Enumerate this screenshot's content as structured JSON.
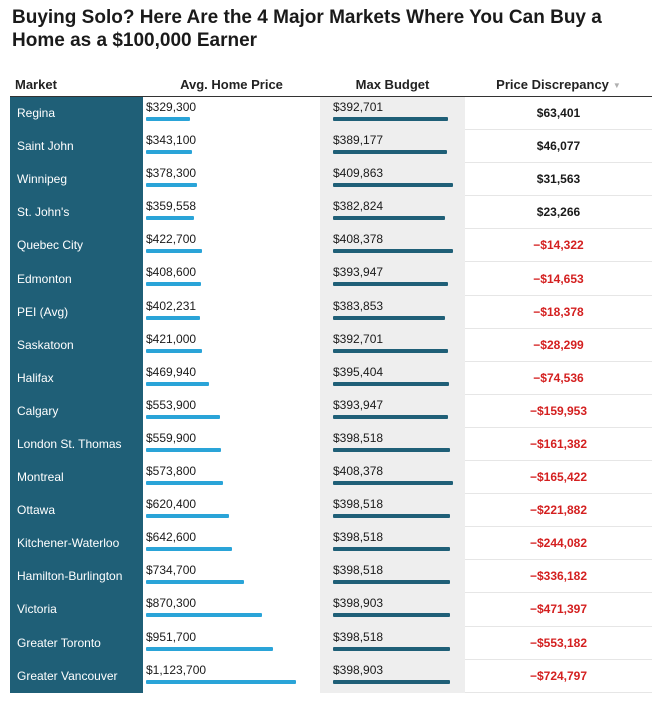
{
  "title": "Buying Solo? Here Are the 4 Major Markets Where You Can Buy a Home as a $100,000 Earner",
  "headers": {
    "market": "Market",
    "avg": "Avg. Home Price",
    "max": "Max Budget",
    "disc": "Price Discrepancy",
    "sort_icon": "▼"
  },
  "colors": {
    "market_bg": "#1f5f77",
    "avg_bar": "#2aa4d8",
    "max_bar": "#1f5f77",
    "negative": "#d42020"
  },
  "chart_data": {
    "type": "table",
    "title": "Buying Solo? Here Are the 4 Major Markets Where You Can Buy a Home as a $100,000 Earner",
    "columns": [
      "Market",
      "Avg. Home Price",
      "Max Budget",
      "Price Discrepancy"
    ],
    "rows": [
      {
        "market": "Regina",
        "avg_price": "$329,300",
        "avg_value": 329300,
        "max_budget": "$392,701",
        "max_value": 392701,
        "discrepancy": "$63,401",
        "disc_value": 63401
      },
      {
        "market": "Saint John",
        "avg_price": "$343,100",
        "avg_value": 343100,
        "max_budget": "$389,177",
        "max_value": 389177,
        "discrepancy": "$46,077",
        "disc_value": 46077
      },
      {
        "market": "Winnipeg",
        "avg_price": "$378,300",
        "avg_value": 378300,
        "max_budget": "$409,863",
        "max_value": 409863,
        "discrepancy": "$31,563",
        "disc_value": 31563
      },
      {
        "market": "St. John's",
        "avg_price": "$359,558",
        "avg_value": 359558,
        "max_budget": "$382,824",
        "max_value": 382824,
        "discrepancy": "$23,266",
        "disc_value": 23266
      },
      {
        "market": "Quebec City",
        "avg_price": "$422,700",
        "avg_value": 422700,
        "max_budget": "$408,378",
        "max_value": 408378,
        "discrepancy": "−$14,322",
        "disc_value": -14322
      },
      {
        "market": "Edmonton",
        "avg_price": "$408,600",
        "avg_value": 408600,
        "max_budget": "$393,947",
        "max_value": 393947,
        "discrepancy": "−$14,653",
        "disc_value": -14653
      },
      {
        "market": "PEI (Avg)",
        "avg_price": "$402,231",
        "avg_value": 402231,
        "max_budget": "$383,853",
        "max_value": 383853,
        "discrepancy": "−$18,378",
        "disc_value": -18378
      },
      {
        "market": "Saskatoon",
        "avg_price": "$421,000",
        "avg_value": 421000,
        "max_budget": "$392,701",
        "max_value": 392701,
        "discrepancy": "−$28,299",
        "disc_value": -28299
      },
      {
        "market": "Halifax",
        "avg_price": "$469,940",
        "avg_value": 469940,
        "max_budget": "$395,404",
        "max_value": 395404,
        "discrepancy": "−$74,536",
        "disc_value": -74536
      },
      {
        "market": "Calgary",
        "avg_price": "$553,900",
        "avg_value": 553900,
        "max_budget": "$393,947",
        "max_value": 393947,
        "discrepancy": "−$159,953",
        "disc_value": -159953
      },
      {
        "market": "London St. Thomas",
        "avg_price": "$559,900",
        "avg_value": 559900,
        "max_budget": "$398,518",
        "max_value": 398518,
        "discrepancy": "−$161,382",
        "disc_value": -161382
      },
      {
        "market": "Montreal",
        "avg_price": "$573,800",
        "avg_value": 573800,
        "max_budget": "$408,378",
        "max_value": 408378,
        "discrepancy": "−$165,422",
        "disc_value": -165422
      },
      {
        "market": "Ottawa",
        "avg_price": "$620,400",
        "avg_value": 620400,
        "max_budget": "$398,518",
        "max_value": 398518,
        "discrepancy": "−$221,882",
        "disc_value": -221882
      },
      {
        "market": "Kitchener-Waterloo",
        "avg_price": "$642,600",
        "avg_value": 642600,
        "max_budget": "$398,518",
        "max_value": 398518,
        "discrepancy": "−$244,082",
        "disc_value": -244082
      },
      {
        "market": "Hamilton-Burlington",
        "avg_price": "$734,700",
        "avg_value": 734700,
        "max_budget": "$398,518",
        "max_value": 398518,
        "discrepancy": "−$336,182",
        "disc_value": -336182
      },
      {
        "market": "Victoria",
        "avg_price": "$870,300",
        "avg_value": 870300,
        "max_budget": "$398,903",
        "max_value": 398903,
        "discrepancy": "−$471,397",
        "disc_value": -471397
      },
      {
        "market": "Greater Toronto",
        "avg_price": "$951,700",
        "avg_value": 951700,
        "max_budget": "$398,518",
        "max_value": 398518,
        "discrepancy": "−$553,182",
        "disc_value": -553182
      },
      {
        "market": "Greater Vancouver",
        "avg_price": "$1,123,700",
        "avg_value": 1123700,
        "max_budget": "$398,903",
        "max_value": 398903,
        "discrepancy": "−$724,797",
        "disc_value": -724797
      }
    ]
  }
}
